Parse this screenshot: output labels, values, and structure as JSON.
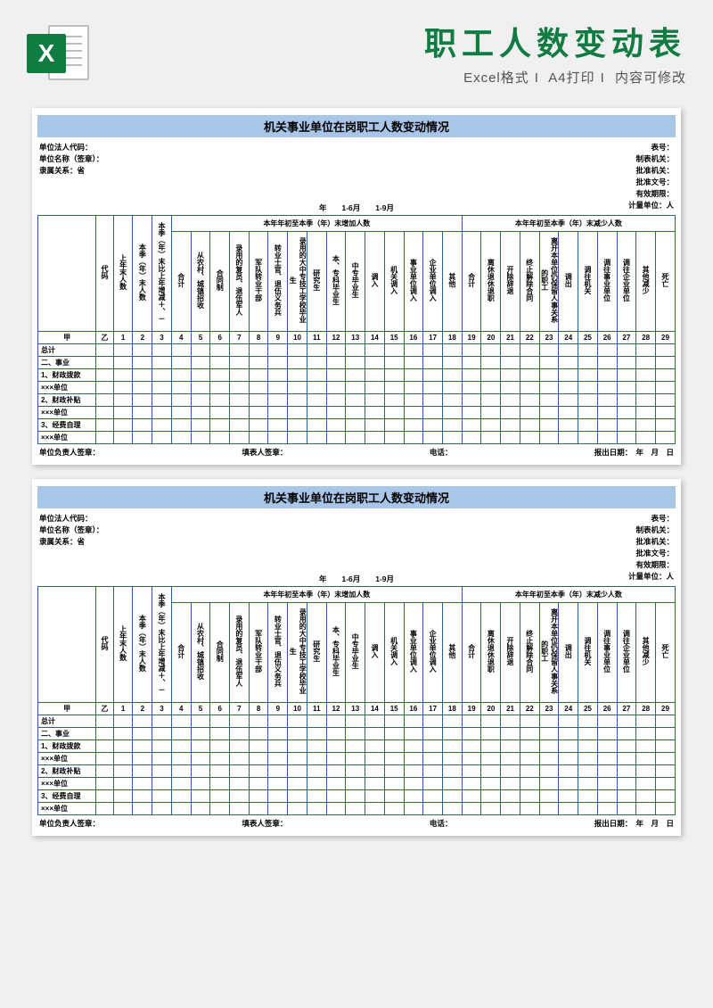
{
  "header": {
    "excel_letter": "X",
    "title": "职工人数变动表",
    "subtitle_parts": [
      "Excel格式",
      "A4打印",
      "内容可修改"
    ]
  },
  "form": {
    "banner": "机关事业单位在岗职工人数变动情况",
    "meta_left": {
      "l1": "单位法人代码：",
      "l2": "单位名称（签章）：",
      "l3": "隶属关系：省"
    },
    "meta_right": {
      "r1": "表号：",
      "r2": "制表机关：",
      "r3": "批准机关：",
      "r4": "批准文号：",
      "r5": "有效期限：",
      "r6": "计量单位：人"
    },
    "midline": "年　　1-6月　　1-9月",
    "group_increase": "本年年初至本季（年）末增加人数",
    "group_decrease": "本年年初至本季（年）末减少人数",
    "cols": {
      "c0": "甲",
      "c1": "代码",
      "h": [
        "上年末人数",
        "本季（年）末人数",
        "本季（年）末比上年增减＋、－",
        "合计",
        "从农村、城镇招收",
        "合同制",
        "录用的复员、退伍军人",
        "军队转业干部",
        "转业士官、退伍义务兵",
        "录用的大中专技工学校毕业生",
        "研究生",
        "本、专科毕业生",
        "中专毕业生",
        "调入",
        "机关调入",
        "事业单位调入",
        "企业单位调入",
        "其他",
        "合计",
        "离休退休退职",
        "开除辞退",
        "终止解除合同",
        "离开本单位仍保留人事关系的职工",
        "调出",
        "调往机关",
        "调往事业单位",
        "调往企业单位",
        "其他减少",
        "死亡"
      ],
      "c0b": "乙"
    },
    "rows": {
      "r1": "总计",
      "r2": "二、事业",
      "r3": "1、财政拨款",
      "r4": "×××单位",
      "r5": "2、财政补贴",
      "r6": "×××单位",
      "r7": "3、经费自理",
      "r8": "×××单位"
    },
    "footer": {
      "f1": "单位负责人签章：",
      "f2": "填表人签章：",
      "f3": "电话：",
      "f4": "报出日期：　年　月　日"
    }
  },
  "colors": {
    "accent": "#107c41",
    "table_border": "#2a5caa",
    "banner_bg": "#a8c6e8"
  }
}
